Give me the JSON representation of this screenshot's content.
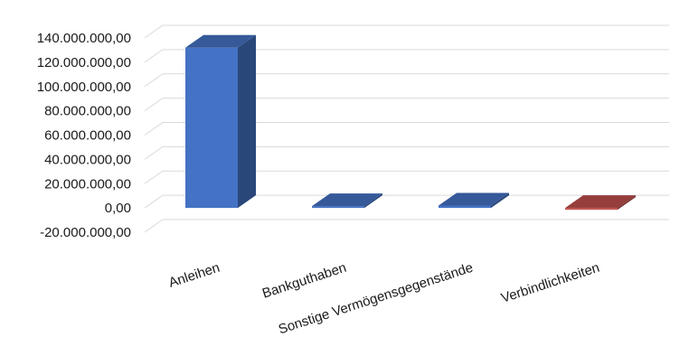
{
  "chart_data": {
    "type": "bar",
    "categories": [
      "Anleihen",
      "Bankguthaben",
      "Sonstige Vermögensgegenstände",
      "Verbindlichkeiten"
    ],
    "values": [
      132000000,
      1500000,
      2000000,
      -1500000
    ],
    "bar_colors": [
      "#4472c4",
      "#4472c4",
      "#4472c4",
      "#c0504d"
    ],
    "ylim": [
      -20000000,
      140000000
    ],
    "y_ticks": [
      "140.000.000,00",
      "120.000.000,00",
      "100.000.000,00",
      "80.000.000,00",
      "60.000.000,00",
      "40.000.000,00",
      "20.000.000,00",
      "0,00",
      "-20.000.000,00"
    ],
    "grid": true,
    "style": "3d-column",
    "title": "",
    "xlabel": "",
    "ylabel": ""
  }
}
